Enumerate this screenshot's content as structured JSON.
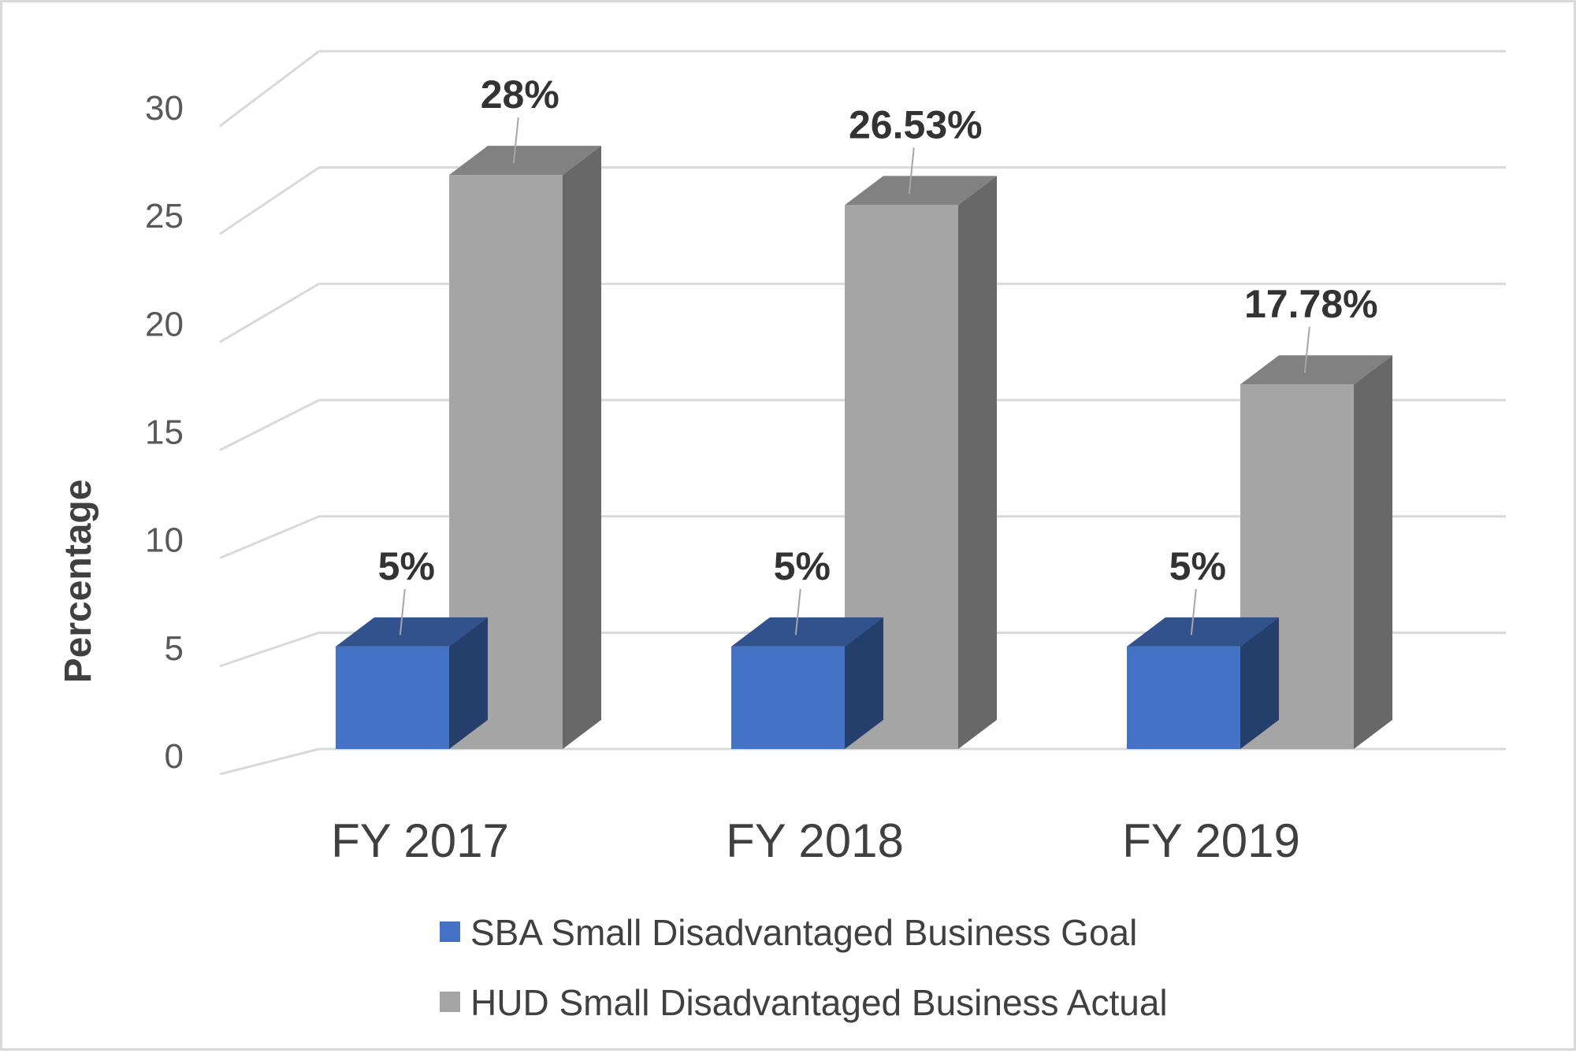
{
  "chart_data": {
    "type": "bar",
    "title": "",
    "xlabel": "",
    "ylabel": "Percentage",
    "ylim": [
      0,
      30
    ],
    "yticks": [
      0,
      5,
      10,
      15,
      20,
      25,
      30
    ],
    "grid": true,
    "legend_position": "bottom",
    "categories": [
      "FY 2017",
      "FY 2018",
      "FY 2019"
    ],
    "series": [
      {
        "name": "SBA Small Disadvantaged Business Goal",
        "color": "#4472c4",
        "values": [
          5,
          5,
          5
        ],
        "labels": [
          "5%",
          "5%",
          "5%"
        ]
      },
      {
        "name": "HUD Small Disadvantaged Business Actual",
        "color": "#a5a5a5",
        "values": [
          28,
          26.53,
          17.78
        ],
        "labels": [
          "28%",
          "26.53%",
          "17.78%"
        ]
      }
    ]
  }
}
